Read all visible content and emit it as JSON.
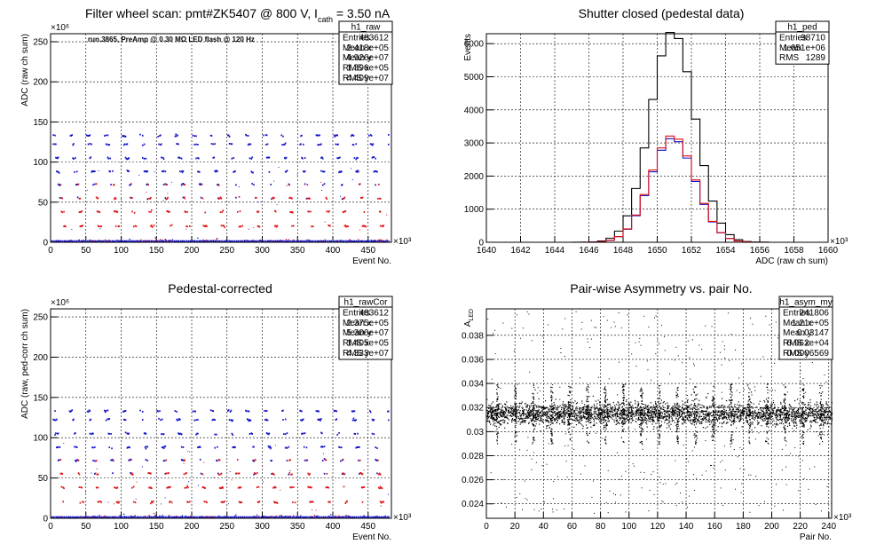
{
  "chart_data": [
    {
      "id": "raw",
      "type": "scatter",
      "title": "Filter wheel scan: pmt#ZK5407 @   800 V, I",
      "title_sub": "cath",
      "title_tail": " = 3.50 nA",
      "annotation": "run.3865, PreAmp @ 0.30 MΩ LED flash @  120 Hz",
      "xlabel": "Event No.",
      "ylabel": "ADC (raw ch sum)",
      "x_multiplier": "×10³",
      "y_multiplier": "×10⁶",
      "xlim": [
        0,
        483
      ],
      "ylim": [
        0,
        260
      ],
      "x_ticks": [
        "0",
        "50",
        "100",
        "150",
        "200",
        "250",
        "300",
        "350",
        "400",
        "450"
      ],
      "y_ticks": [
        "0",
        "50",
        "100",
        "150",
        "200",
        "250"
      ],
      "levels": [
        133,
        122,
        105,
        88,
        72,
        55,
        38,
        20,
        3
      ],
      "series": [
        {
          "name": "",
          "color": "#1010c8"
        },
        {
          "name": "",
          "color": "#e01010"
        }
      ],
      "stats": {
        "name": "h1_raw",
        "rows": [
          [
            "Entries",
            "483612"
          ],
          [
            "Mean x",
            "2.418e+05"
          ],
          [
            "Mean y",
            "4.926e+07"
          ],
          [
            "RMS x",
            "1.396e+05"
          ],
          [
            "RMS y",
            "4.409e+07"
          ]
        ]
      }
    },
    {
      "id": "ped",
      "type": "line",
      "title": "Shutter closed (pedestal data)",
      "xlabel": "ADC (raw ch sum)",
      "ylabel": "Events",
      "x_multiplier": "×10³",
      "xlim": [
        1640,
        1660
      ],
      "ylim": [
        0,
        6300
      ],
      "x_ticks": [
        "1640",
        "1642",
        "1644",
        "1646",
        "1648",
        "1650",
        "1652",
        "1654",
        "1656",
        "1658",
        "1660"
      ],
      "y_ticks": [
        "0",
        "1000",
        "2000",
        "3000",
        "4000",
        "5000",
        "6000"
      ],
      "series": [
        {
          "name": "",
          "color": "#000000",
          "mean": 1650.9,
          "sigma": 1.3,
          "peak": 6380
        },
        {
          "name": "",
          "color": "#1010c8",
          "mean": 1650.9,
          "sigma": 1.3,
          "peak": 3150
        },
        {
          "name": "",
          "color": "#e01010",
          "mean": 1650.9,
          "sigma": 1.3,
          "peak": 3230
        }
      ],
      "stats": {
        "name": "h1_ped",
        "rows": [
          [
            "Entries",
            "98710"
          ],
          [
            "Mean",
            "1.651e+06"
          ],
          [
            "RMS",
            "1289"
          ]
        ]
      }
    },
    {
      "id": "rawcor",
      "type": "scatter",
      "title": "Pedestal-corrected",
      "xlabel": "Event No.",
      "ylabel": "ADC (raw, ped-corr ch sum)",
      "x_multiplier": "×10³",
      "y_multiplier": "×10⁶",
      "xlim": [
        0,
        483
      ],
      "ylim": [
        0,
        260
      ],
      "x_ticks": [
        "0",
        "50",
        "100",
        "150",
        "200",
        "250",
        "300",
        "350",
        "400",
        "450"
      ],
      "y_ticks": [
        "0",
        "50",
        "100",
        "150",
        "200",
        "250"
      ],
      "levels": [
        133,
        122,
        105,
        88,
        72,
        55,
        38,
        20,
        3
      ],
      "series": [
        {
          "name": "",
          "color": "#1010c8"
        },
        {
          "name": "",
          "color": "#e01010"
        }
      ],
      "stats": {
        "name": "h1_rawCor",
        "rows": [
          [
            "Entries",
            "483612"
          ],
          [
            "Mean x",
            "2.375e+05"
          ],
          [
            "Mean y",
            "5.306e+07"
          ],
          [
            "RMS x",
            "1.405e+05"
          ],
          [
            "RMS y",
            "4.333e+07"
          ]
        ]
      }
    },
    {
      "id": "asym",
      "type": "scatter",
      "title": "Pair-wise Asymmetry vs. pair No.",
      "xlabel": "Pair No.",
      "ylabel": "A",
      "ylabel_sub": "LED",
      "x_multiplier": "×10³",
      "xlim": [
        0,
        242
      ],
      "ylim": [
        0.0228,
        0.0402
      ],
      "x_ticks": [
        "0",
        "20",
        "40",
        "60",
        "80",
        "100",
        "120",
        "140",
        "160",
        "180",
        "200",
        "220",
        "240"
      ],
      "y_ticks": [
        "0.024",
        "0.026",
        "0.028",
        "0.03",
        "0.032",
        "0.034",
        "0.036",
        "0.038"
      ],
      "band_center": 0.0315,
      "series": [
        {
          "name": "",
          "color": "#000000"
        }
      ],
      "stats": {
        "name": "h1_asym_my",
        "rows": [
          [
            "Entries",
            "241806"
          ],
          [
            "Mean x",
            "1.21e+05"
          ],
          [
            "Mean y",
            "0.03147"
          ],
          [
            "RMS x",
            "6.962e+04"
          ],
          [
            "RMS y",
            "0.0006569"
          ]
        ]
      }
    }
  ]
}
